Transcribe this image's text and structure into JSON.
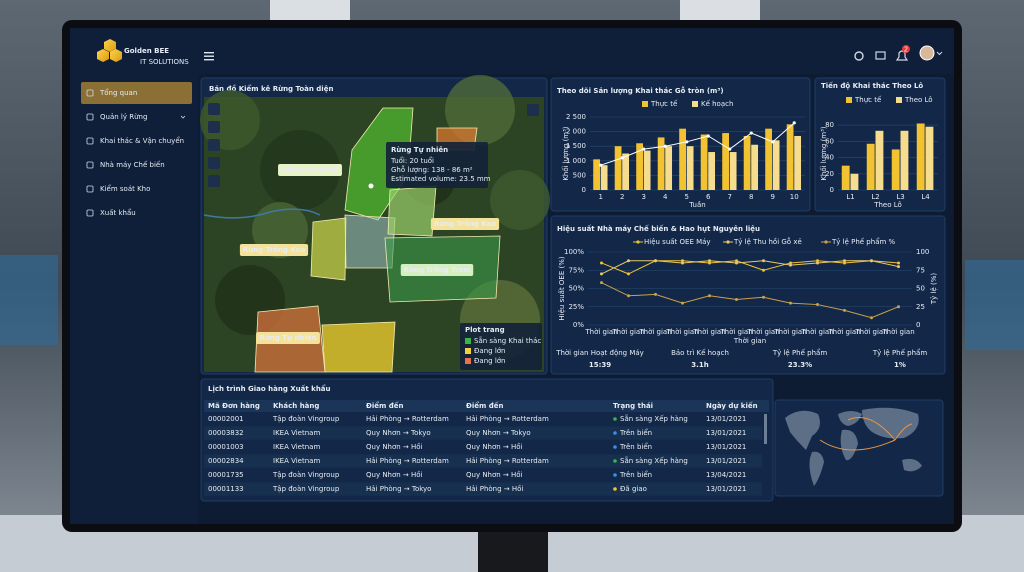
{
  "brand": {
    "name": "Golden BEE",
    "tagline": "IT SOLUTIONS"
  },
  "header": {
    "notifications": 2
  },
  "sidebar": {
    "active": 0,
    "items": [
      "Tổng quan",
      "Quản lý Rừng",
      "Khai thác & Vận chuyển",
      "Nhà máy Chế biến",
      "Kiểm soát Kho",
      "Xuất khẩu"
    ]
  },
  "map_panel": {
    "title": "Bản đồ Kiểm kê Rừng Toàn diện",
    "zones": [
      "Rừng Tự nhiên",
      "Rừng Trồng Keo",
      "Rừng Trồng Keo",
      "Rừng Trồng Tràm",
      "Rừng Tự nhiên"
    ],
    "popup": {
      "title": "Rừng Tự nhiên",
      "lines": [
        "Tuổi: 20 tuổi",
        "Ghỗ lượng: 138 - 86 m²",
        "Estimated volume: 23.5 mm"
      ]
    },
    "legend": {
      "title": "Plot trang",
      "items": [
        {
          "label": "Sẵn sàng Khai thác",
          "color": "#3bb54a"
        },
        {
          "label": "Đang lớn",
          "color": "#f2d03b"
        },
        {
          "label": "Đang lớn",
          "color": "#e8734a"
        }
      ]
    }
  },
  "production_chart": {
    "type": "bar",
    "title": "Theo dõi Sản lượng Khai thác Gỗ tròn (m³)",
    "x_label": "Tuần",
    "y_label": "Khối lượng (m³)",
    "categories": [
      "1",
      "2",
      "3",
      "4",
      "5",
      "6",
      "7",
      "8",
      "9",
      "10"
    ],
    "series": [
      {
        "name": "Thực tế",
        "color": "#f2c230",
        "values": [
          1050,
          1500,
          1600,
          1800,
          2100,
          1900,
          1950,
          1850,
          2100,
          2250
        ]
      },
      {
        "name": "Kế hoạch",
        "color": "#f6dd8e",
        "values": [
          850,
          1250,
          1350,
          1500,
          1500,
          1300,
          1300,
          1550,
          1700,
          1850
        ]
      }
    ],
    "trend": {
      "color": "#ffffff",
      "values": [
        850,
        1100,
        1400,
        1500,
        1650,
        1850,
        1400,
        1950,
        1650,
        2300
      ]
    },
    "ylim": [
      0,
      2500
    ],
    "yticks": [
      0,
      500,
      {
        "value": 1000,
        "label": "1 000"
      },
      {
        "value": 1500,
        "label": "1 500"
      },
      {
        "value": 2000,
        "label": "2 000"
      },
      {
        "value": 2500,
        "label": "2 500"
      }
    ],
    "grid": true
  },
  "lot_chart": {
    "type": "bar",
    "title": "Tiến độ Khai thác Theo Lô",
    "x_label": "Theo Lô",
    "y_label": "Khối lượng (m³)",
    "categories": [
      "L1",
      "L2",
      "L3",
      "L4"
    ],
    "series": [
      {
        "name": "Thực tế",
        "color": "#f2c230",
        "values": [
          30,
          57,
          50,
          82
        ]
      },
      {
        "name": "Theo Lô",
        "color": "#f6dd8e",
        "values": [
          20,
          73,
          73,
          78
        ]
      }
    ],
    "ylim": [
      0,
      90
    ],
    "yticks": [
      0,
      20,
      40,
      60,
      80
    ],
    "grid": true
  },
  "oee_chart": {
    "type": "line",
    "title": "Hiệu suất Nhà máy Chế biến & Hao hụt Nguyên liệu",
    "x_label": "Thời gian",
    "y_label": "Hiệu suất OEE (%)",
    "y2_label": "Tỷ lệ (%)",
    "categories": [
      "Thời gian",
      "Thời gian",
      "Thời gian",
      "Thời gian",
      "Thời gian",
      "Thời gian",
      "Thời gian",
      "Thời gian",
      "Thời gian",
      "Thời gian",
      "Thời gian",
      "Thời gian"
    ],
    "series": [
      {
        "name": "Hiệu suất OEE Máy",
        "color": "#f2c230",
        "values": [
          85,
          70,
          88,
          88,
          85,
          88,
          75,
          85,
          88,
          85,
          88,
          85
        ]
      },
      {
        "name": "Tỷ lệ Thu hồi Gỗ xẻ",
        "color": "#e9c868",
        "values": [
          70,
          88,
          88,
          85,
          88,
          85,
          88,
          82,
          85,
          88,
          88,
          80
        ]
      },
      {
        "name": "Tỷ lệ Phế phẩm  %",
        "color": "#c9a24a",
        "axis": "y2",
        "values": [
          58,
          40,
          42,
          30,
          40,
          35,
          38,
          30,
          28,
          20,
          10,
          25
        ]
      }
    ],
    "ylim": [
      0,
      100
    ],
    "yticks": [
      {
        "value": 0,
        "label": "0%"
      },
      {
        "value": 25,
        "label": "25%"
      },
      {
        "value": 50,
        "label": "50%"
      },
      {
        "value": 75,
        "label": "75%"
      },
      {
        "value": 100,
        "label": "100%"
      }
    ],
    "y2lim": [
      0,
      100
    ],
    "y2ticks": [
      0,
      25,
      50,
      75,
      100
    ],
    "grid": true
  },
  "kpis": [
    {
      "label": "Thời gian Hoạt động Máy",
      "value": "15:39"
    },
    {
      "label": "Bảo trì Kế hoạch",
      "value": "3.1h"
    },
    {
      "label": "Tỷ lệ Phế phẩm",
      "value": "23.3%"
    },
    {
      "label": "Tỷ lệ Phế phẩm",
      "value": "1%"
    }
  ],
  "shipments": {
    "title": "Lịch trình Giao hàng Xuất khẩu",
    "headers": [
      "Mã Đơn hàng",
      "Khách hàng",
      "Điểm đến",
      "Điểm đến",
      "Trạng thái",
      "Ngày dự kiến"
    ],
    "rows": [
      [
        "00002001",
        "Tập đoàn Vingroup",
        "Hải Phòng → Rotterdam",
        "Hải Phòng → Rotterdam",
        "Sẵn sàng Xếp hàng",
        "13/01/2021"
      ],
      [
        "00003832",
        "IKEA Vietnam",
        "Quy Nhơn → Tokyo",
        "Quy Nhơn → Tokyo",
        "Trên biển",
        "13/01/2021"
      ],
      [
        "00001003",
        "IKEA Vietnam",
        "Quy Nhơn → Hồi",
        "Quy Nhơn → Hồi",
        "Trên biển",
        "13/01/2021"
      ],
      [
        "00002834",
        "IKEA Vietnam",
        "Hải Phòng → Rotterdam",
        "Hải Phòng → Rotterdam",
        "Sẵn sàng Xếp hàng",
        "13/01/2021"
      ],
      [
        "00001735",
        "Tập đoàn Vingroup",
        "Quy Nhơn → Hồi",
        "Quy Nhơn → Hồi",
        "Trên biển",
        "13/04/2021"
      ],
      [
        "00001133",
        "Tập đoàn Vingroup",
        "Hải Phòng → Tokyo",
        "Hải Phòng → Hồi",
        "Đã giao",
        "13/01/2021"
      ]
    ],
    "status_colors": [
      "#3bb54a",
      "#3a8ee6",
      "#3a8ee6",
      "#3bb54a",
      "#3a8ee6",
      "#f2c230"
    ]
  }
}
